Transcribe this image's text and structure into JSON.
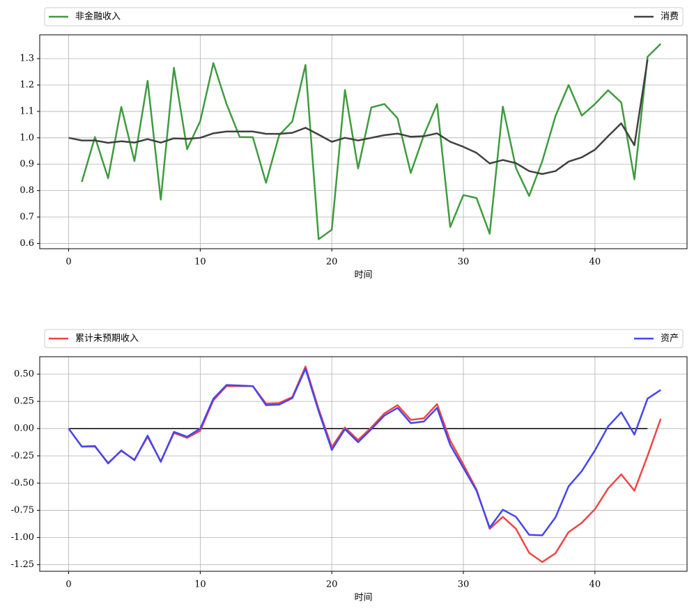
{
  "chart_data": [
    {
      "type": "line",
      "xlabel": "时间",
      "legend": "top",
      "grid": true,
      "x": [
        0,
        1,
        2,
        3,
        4,
        5,
        6,
        7,
        8,
        9,
        10,
        11,
        12,
        13,
        14,
        15,
        16,
        17,
        18,
        19,
        20,
        21,
        22,
        23,
        24,
        25,
        26,
        27,
        28,
        29,
        30,
        31,
        32,
        33,
        34,
        35,
        36,
        37,
        38,
        39,
        40,
        41,
        42,
        43,
        44,
        45
      ],
      "xlim": [
        -2.2,
        47.0
      ],
      "xticks": [
        0,
        10,
        20,
        30,
        40
      ],
      "ylim": [
        0.58,
        1.39
      ],
      "yticks": [
        0.6,
        0.7,
        0.8,
        0.9,
        {
          "value": 1,
          "label": "1.0"
        },
        1.1,
        1.2,
        1.3
      ],
      "series": [
        {
          "name": "非金融收入",
          "color": "#3f9b3f",
          "values": [
            null,
            0.833,
            1.003,
            0.847,
            1.117,
            0.912,
            1.216,
            0.766,
            1.265,
            0.957,
            1.063,
            1.283,
            1.128,
            1.003,
            1.002,
            0.83,
            1.01,
            1.062,
            1.276,
            0.616,
            0.652,
            1.181,
            0.884,
            1.115,
            1.128,
            1.074,
            0.867,
            1.01,
            1.128,
            0.662,
            0.783,
            0.772,
            0.637,
            1.118,
            0.885,
            0.78,
            0.912,
            1.082,
            1.2,
            1.084,
            1.128,
            1.18,
            1.134,
            0.843,
            1.307,
            1.356
          ]
        },
        {
          "name": "消费",
          "color": "#404040",
          "values": [
            1.0,
            0.99,
            0.99,
            0.981,
            0.987,
            0.982,
            0.995,
            0.982,
            0.998,
            0.996,
            1.0,
            1.017,
            1.024,
            1.024,
            1.024,
            1.015,
            1.015,
            1.019,
            1.038,
            1.012,
            0.985,
            1.0,
            0.99,
            1.0,
            1.01,
            1.016,
            1.004,
            1.006,
            1.017,
            0.985,
            0.966,
            0.943,
            0.903,
            0.916,
            0.904,
            0.874,
            0.863,
            0.874,
            0.91,
            0.926,
            0.955,
            1.006,
            1.055,
            0.972,
            1.296,
            null
          ]
        }
      ]
    },
    {
      "type": "line",
      "xlabel": "时间",
      "legend": "top",
      "grid": true,
      "x": [
        0,
        1,
        2,
        3,
        4,
        5,
        6,
        7,
        8,
        9,
        10,
        11,
        12,
        13,
        14,
        15,
        16,
        17,
        18,
        19,
        20,
        21,
        22,
        23,
        24,
        25,
        26,
        27,
        28,
        29,
        30,
        31,
        32,
        33,
        34,
        35,
        36,
        37,
        38,
        39,
        40,
        41,
        42,
        43,
        44,
        45
      ],
      "xlim": [
        -2.2,
        47.0
      ],
      "xticks": [
        0,
        10,
        20,
        30,
        40
      ],
      "ylim": [
        -1.31,
        0.66
      ],
      "yticks": [
        {
          "value": 0.5,
          "label": "0.50"
        },
        0.25,
        {
          "value": 0,
          "label": "0.00"
        },
        -0.25,
        {
          "value": -0.5,
          "label": "-0.50"
        },
        -0.75,
        {
          "value": -1,
          "label": "-1.00"
        },
        -1.25
      ],
      "hline": {
        "y": 0,
        "x": [
          0,
          44
        ],
        "color": "#000000"
      },
      "series": [
        {
          "name": "累计未预期收入",
          "color": "#f04545",
          "values": [
            0,
            -0.165,
            -0.165,
            -0.315,
            -0.205,
            -0.285,
            -0.075,
            -0.3,
            -0.04,
            -0.085,
            -0.02,
            0.26,
            0.39,
            0.39,
            0.39,
            0.23,
            0.235,
            0.29,
            0.57,
            0.18,
            -0.17,
            0.01,
            -0.105,
            0.01,
            0.14,
            0.215,
            0.08,
            0.095,
            0.225,
            -0.11,
            -0.33,
            -0.56,
            -0.92,
            -0.81,
            -0.92,
            -1.14,
            -1.225,
            -1.145,
            -0.95,
            -0.865,
            -0.74,
            -0.55,
            -0.42,
            -0.57,
            -0.25,
            0.09
          ]
        },
        {
          "name": "资产",
          "color": "#4545f0",
          "values": [
            0,
            -0.165,
            -0.16,
            -0.32,
            -0.2,
            -0.29,
            -0.065,
            -0.305,
            -0.03,
            -0.075,
            0.0,
            0.275,
            0.4,
            0.395,
            0.39,
            0.215,
            0.22,
            0.28,
            0.55,
            0.16,
            -0.195,
            -0.005,
            -0.125,
            -0.005,
            0.12,
            0.19,
            0.05,
            0.065,
            0.19,
            -0.15,
            -0.36,
            -0.57,
            -0.91,
            -0.745,
            -0.81,
            -0.975,
            -0.98,
            -0.815,
            -0.53,
            -0.39,
            -0.2,
            0.02,
            0.15,
            -0.055,
            0.275,
            0.355
          ]
        }
      ]
    }
  ]
}
